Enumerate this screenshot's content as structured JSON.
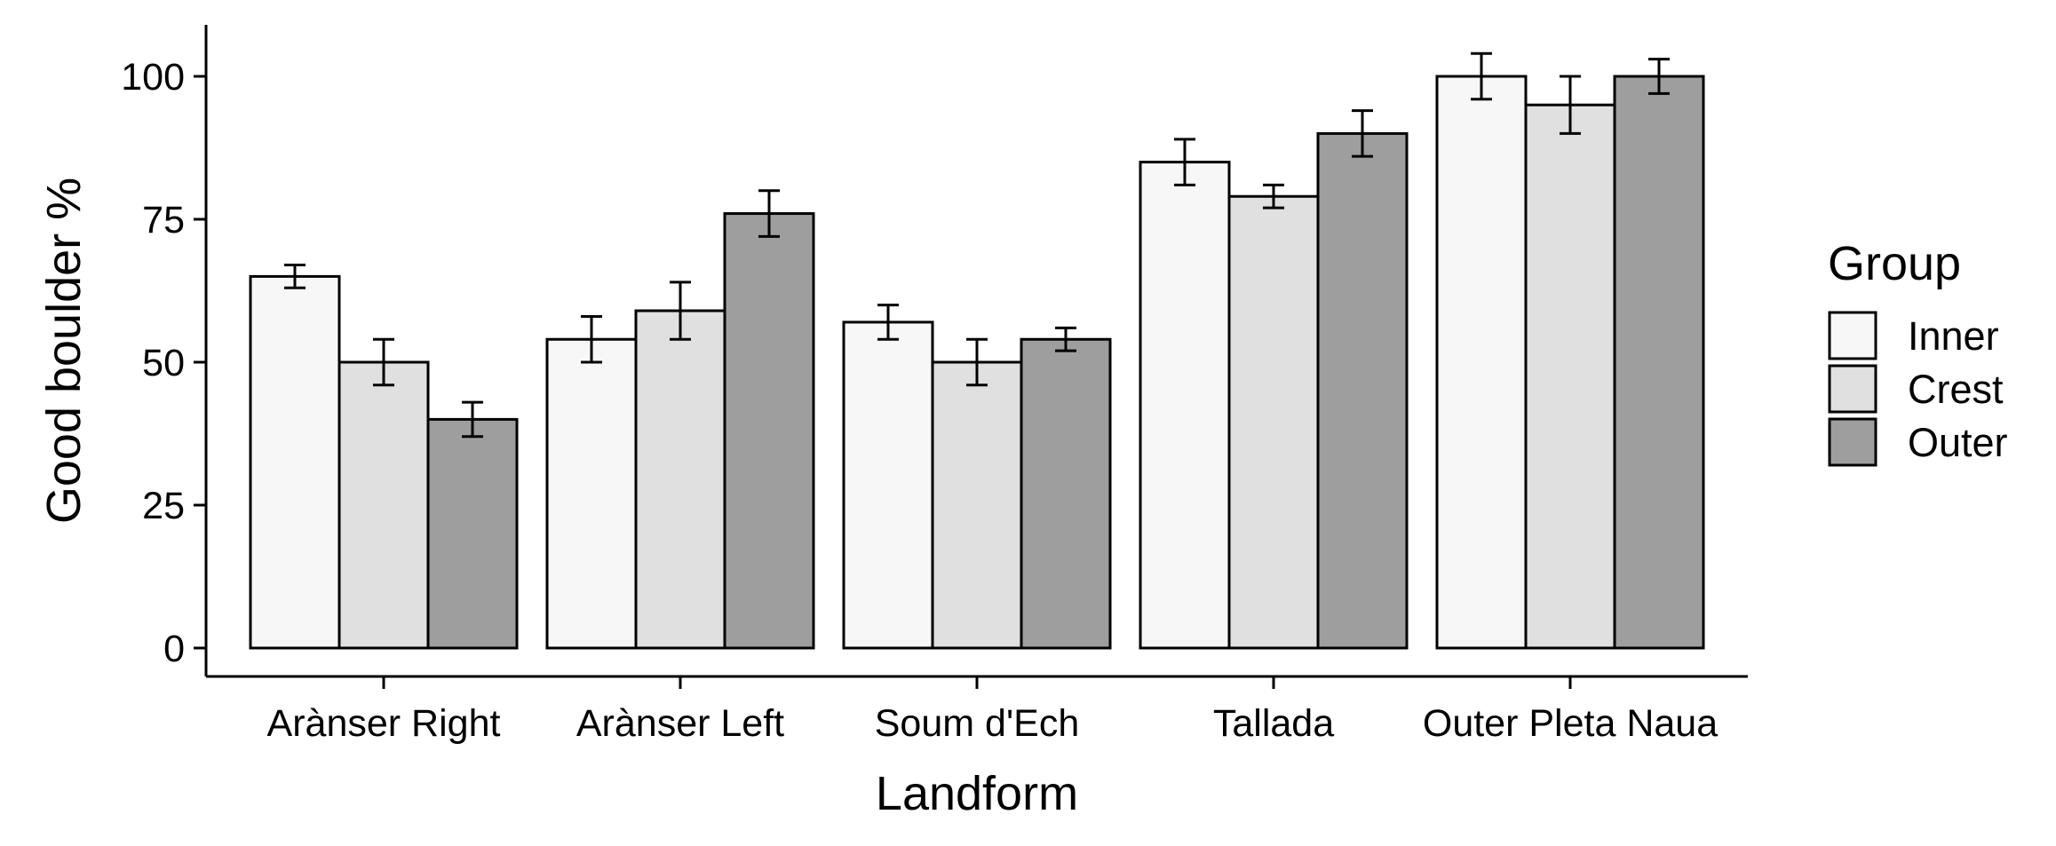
{
  "chart_data": {
    "type": "bar",
    "title": "",
    "xlabel": "Landform",
    "ylabel": "Good boulder %",
    "ylim": [
      0,
      110
    ],
    "yticks": [
      0,
      25,
      50,
      75,
      100
    ],
    "grid": false,
    "legend": {
      "title": "Group",
      "position": "right"
    },
    "categories": [
      "Arànser Right",
      "Arànser Left",
      "Soum d'Ech",
      "Tallada",
      "Outer Pleta Naua"
    ],
    "series": [
      {
        "name": "Inner",
        "color": "#f7f7f7",
        "values": [
          65,
          54,
          57,
          85,
          100
        ],
        "error": [
          2,
          4,
          3,
          4,
          4
        ]
      },
      {
        "name": "Crest",
        "color": "#e0e0e0",
        "values": [
          50,
          59,
          50,
          79,
          95
        ],
        "error": [
          4,
          5,
          4,
          2,
          5
        ]
      },
      {
        "name": "Outer",
        "color": "#9e9e9e",
        "values": [
          40,
          76,
          54,
          90,
          100
        ],
        "error": [
          3,
          4,
          2,
          4,
          3
        ]
      }
    ]
  }
}
